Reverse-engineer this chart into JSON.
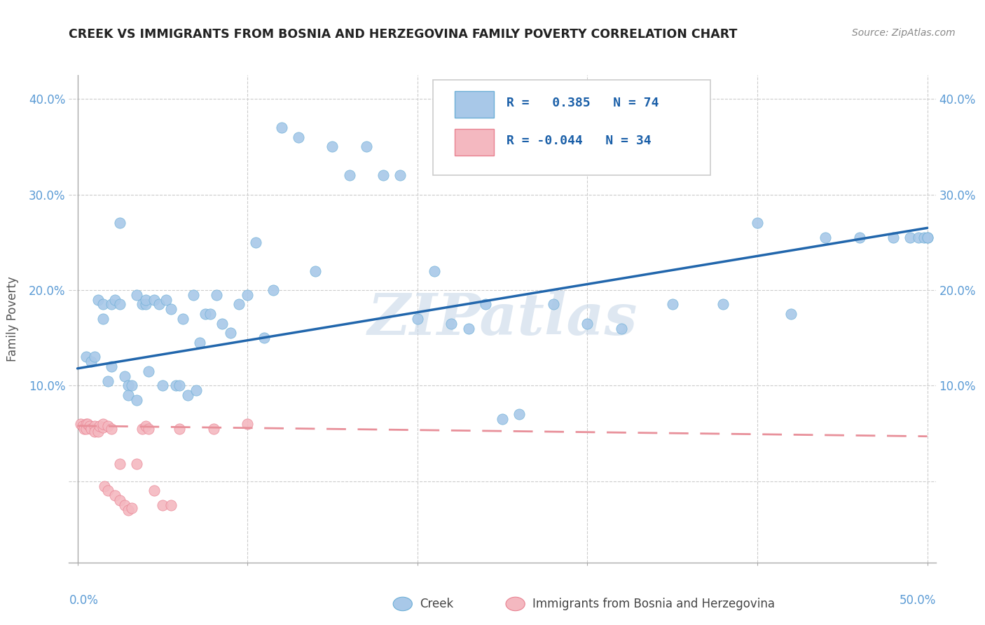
{
  "title": "CREEK VS IMMIGRANTS FROM BOSNIA AND HERZEGOVINA FAMILY POVERTY CORRELATION CHART",
  "source": "Source: ZipAtlas.com",
  "ylabel": "Family Poverty",
  "xlim": [
    -0.005,
    0.505
  ],
  "ylim": [
    -0.085,
    0.425
  ],
  "creek_color": "#a8c8e8",
  "creek_edge_color": "#6baed6",
  "bosnia_color": "#f4b8c0",
  "bosnia_edge_color": "#e88090",
  "creek_line_color": "#2166ac",
  "bosnia_line_color": "#e8909a",
  "watermark": "ZIPatlas",
  "legend_R_creek": "0.385",
  "legend_N_creek": "74",
  "legend_R_bosnia": "-0.044",
  "legend_N_bosnia": "34",
  "creek_scatter_x": [
    0.005,
    0.008,
    0.01,
    0.012,
    0.015,
    0.015,
    0.018,
    0.02,
    0.02,
    0.022,
    0.025,
    0.025,
    0.028,
    0.03,
    0.03,
    0.032,
    0.035,
    0.035,
    0.038,
    0.04,
    0.04,
    0.042,
    0.045,
    0.048,
    0.05,
    0.052,
    0.055,
    0.058,
    0.06,
    0.062,
    0.065,
    0.068,
    0.07,
    0.072,
    0.075,
    0.078,
    0.082,
    0.085,
    0.09,
    0.095,
    0.1,
    0.105,
    0.11,
    0.115,
    0.12,
    0.13,
    0.14,
    0.15,
    0.16,
    0.17,
    0.18,
    0.19,
    0.2,
    0.21,
    0.22,
    0.23,
    0.24,
    0.25,
    0.26,
    0.28,
    0.3,
    0.32,
    0.35,
    0.38,
    0.4,
    0.42,
    0.44,
    0.46,
    0.48,
    0.49,
    0.495,
    0.498,
    0.5,
    0.5
  ],
  "creek_scatter_y": [
    0.13,
    0.125,
    0.13,
    0.19,
    0.185,
    0.17,
    0.105,
    0.12,
    0.185,
    0.19,
    0.185,
    0.27,
    0.11,
    0.1,
    0.09,
    0.1,
    0.085,
    0.195,
    0.185,
    0.185,
    0.19,
    0.115,
    0.19,
    0.185,
    0.1,
    0.19,
    0.18,
    0.1,
    0.1,
    0.17,
    0.09,
    0.195,
    0.095,
    0.145,
    0.175,
    0.175,
    0.195,
    0.165,
    0.155,
    0.185,
    0.195,
    0.25,
    0.15,
    0.2,
    0.37,
    0.36,
    0.22,
    0.35,
    0.32,
    0.35,
    0.32,
    0.32,
    0.17,
    0.22,
    0.165,
    0.16,
    0.185,
    0.065,
    0.07,
    0.185,
    0.165,
    0.16,
    0.185,
    0.185,
    0.27,
    0.175,
    0.255,
    0.255,
    0.255,
    0.255,
    0.255,
    0.255,
    0.255,
    0.255
  ],
  "bosnia_scatter_x": [
    0.002,
    0.003,
    0.004,
    0.005,
    0.005,
    0.006,
    0.007,
    0.008,
    0.01,
    0.01,
    0.012,
    0.013,
    0.015,
    0.015,
    0.016,
    0.018,
    0.018,
    0.02,
    0.022,
    0.025,
    0.025,
    0.028,
    0.03,
    0.032,
    0.035,
    0.038,
    0.04,
    0.042,
    0.045,
    0.05,
    0.055,
    0.06,
    0.08,
    0.1
  ],
  "bosnia_scatter_y": [
    0.06,
    0.058,
    0.055,
    0.06,
    0.055,
    0.06,
    0.058,
    0.055,
    0.058,
    0.052,
    0.052,
    0.058,
    0.056,
    0.06,
    -0.005,
    0.058,
    -0.01,
    0.055,
    -0.015,
    0.018,
    -0.02,
    -0.025,
    -0.03,
    -0.028,
    0.018,
    0.055,
    0.058,
    0.055,
    -0.01,
    -0.025,
    -0.025,
    0.055,
    0.055,
    0.06
  ],
  "creek_line_x0": 0.0,
  "creek_line_y0": 0.118,
  "creek_line_x1": 0.5,
  "creek_line_y1": 0.265,
  "bosnia_line_x0": 0.0,
  "bosnia_line_y0": 0.058,
  "bosnia_line_x1": 0.5,
  "bosnia_line_y1": 0.047,
  "background_color": "#ffffff",
  "grid_color": "#cccccc"
}
